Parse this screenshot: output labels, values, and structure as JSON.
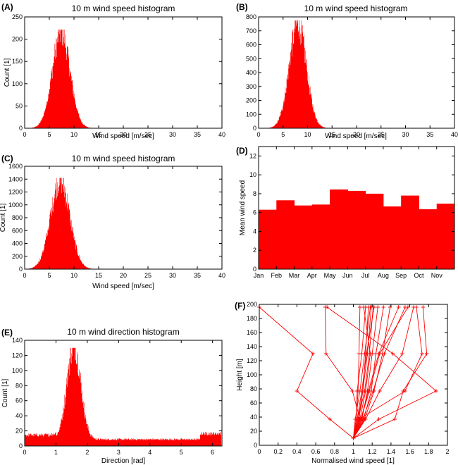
{
  "chart_data": [
    {
      "id": "A",
      "type": "bar",
      "panel_label": "(A)",
      "title": "10 m wind speed histogram",
      "xlabel": "Wind speed [m/sec]",
      "ylabel": "Count [1]",
      "xlim": [
        0,
        40
      ],
      "ylim": [
        0,
        250
      ],
      "xticks": [
        "0",
        "5",
        "10",
        "15",
        "20",
        "25",
        "30",
        "35",
        "40"
      ],
      "yticks": [
        "0",
        "50",
        "100",
        "150",
        "200",
        "250"
      ],
      "distribution": {
        "mean": 7.4,
        "sd": 1.8,
        "peak": 222,
        "xmin": 0.3,
        "xmax": 14.5
      }
    },
    {
      "id": "B",
      "type": "bar",
      "panel_label": "(B)",
      "title": "10 m wind speed histogram",
      "xlabel": "Wind speed [m/sec]",
      "ylabel": "",
      "xlim": [
        0,
        40
      ],
      "ylim": [
        0,
        800
      ],
      "xticks": [
        "0",
        "5",
        "10",
        "15",
        "20",
        "25",
        "30",
        "35",
        "40"
      ],
      "yticks": [
        "0",
        "100",
        "200",
        "300",
        "400",
        "500",
        "600",
        "700",
        "800"
      ],
      "distribution": {
        "mean": 8.0,
        "sd": 1.75,
        "peak": 775,
        "xmin": 0.3,
        "xmax": 15.5
      }
    },
    {
      "id": "C",
      "type": "bar",
      "panel_label": "(C)",
      "title": "10 m wind speed histogram",
      "xlabel": "Wind speed [m/sec]",
      "ylabel": "Count [1]",
      "xlim": [
        0,
        40
      ],
      "ylim": [
        0,
        1600
      ],
      "xticks": [
        "0",
        "5",
        "10",
        "15",
        "20",
        "25",
        "30",
        "35",
        "40"
      ],
      "yticks": [
        "0",
        "200",
        "400",
        "600",
        "800",
        "1000",
        "1200",
        "1400",
        "1600"
      ],
      "distribution": {
        "mean": 7.2,
        "sd": 1.95,
        "peak": 1420,
        "xmin": 0.3,
        "xmax": 16.0
      }
    },
    {
      "id": "D",
      "type": "bar",
      "panel_label": "(D)",
      "title": "",
      "xlabel": "",
      "ylabel": "Mean wind speed",
      "xlim": [
        0,
        11
      ],
      "ylim": [
        0,
        13
      ],
      "categories": [
        "Jan",
        "Feb",
        "Mar",
        "Apr",
        "May",
        "Jun",
        "Jul",
        "Aug",
        "Sep",
        "Oct",
        "Nov"
      ],
      "values": [
        6.3,
        7.3,
        6.75,
        6.85,
        8.45,
        8.3,
        8.0,
        6.65,
        7.8,
        6.35,
        6.95
      ],
      "yticks": [
        "0",
        "2",
        "4",
        "6",
        "8",
        "10",
        "12"
      ]
    },
    {
      "id": "E",
      "type": "bar",
      "panel_label": "(E)",
      "title": "10 m wind direction histogram",
      "xlabel": "Direction [rad]",
      "ylabel": "Count [1]",
      "xlim": [
        0,
        6.3
      ],
      "ylim": [
        0,
        140
      ],
      "xticks": [
        "0",
        "1",
        "2",
        "3",
        "4",
        "5",
        "6"
      ],
      "yticks": [
        "0",
        "20",
        "40",
        "60",
        "80",
        "100",
        "120",
        "140"
      ],
      "distribution": {
        "mean": 1.57,
        "sd": 0.22,
        "peak": 130,
        "xmin": 0,
        "xmax": 6.28
      }
    },
    {
      "id": "F",
      "type": "line",
      "panel_label": "(F)",
      "title": "",
      "xlabel": "Normalised wind speed [1]",
      "ylabel": "Height [m]",
      "xlim": [
        0,
        2
      ],
      "ylim": [
        0,
        200
      ],
      "xticks": [
        "0",
        "0.2",
        "0.4",
        "0.6",
        "0.8",
        "1",
        "1.2",
        "1.4",
        "1.6",
        "1.8",
        "2"
      ],
      "yticks": [
        "0",
        "20",
        "40",
        "60",
        "80",
        "100",
        "120",
        "140",
        "160",
        "180",
        "200"
      ],
      "heights": [
        10,
        37,
        77,
        130,
        196
      ],
      "series": [
        {
          "values": [
            1.0,
            0.75,
            0.4,
            0.57,
            0.0
          ]
        },
        {
          "values": [
            1.0,
            1.27,
            1.88,
            1.42,
            0.72
          ]
        },
        {
          "values": [
            1.0,
            1.07,
            0.99,
            0.71,
            0.7
          ]
        },
        {
          "values": [
            1.0,
            1.06,
            1.55,
            1.73,
            1.67
          ]
        },
        {
          "values": [
            1.0,
            1.44,
            1.53,
            1.78,
            1.74
          ]
        },
        {
          "values": [
            1.0,
            1.13,
            1.28,
            1.52,
            1.64
          ]
        },
        {
          "values": [
            1.0,
            1.08,
            1.16,
            1.27,
            1.48
          ]
        },
        {
          "values": [
            1.0,
            1.1,
            1.21,
            1.33,
            1.55
          ]
        },
        {
          "values": [
            1.0,
            1.05,
            1.1,
            1.15,
            1.19
          ]
        },
        {
          "values": [
            1.0,
            1.03,
            1.05,
            1.06,
            1.07
          ]
        },
        {
          "values": [
            1.0,
            1.06,
            1.1,
            1.13,
            1.16
          ]
        },
        {
          "values": [
            1.0,
            1.09,
            1.15,
            1.2,
            1.26
          ]
        },
        {
          "values": [
            1.0,
            1.02,
            1.07,
            1.12,
            1.18
          ]
        },
        {
          "values": [
            1.0,
            1.11,
            1.19,
            1.24,
            1.32
          ]
        },
        {
          "values": [
            1.0,
            1.04,
            1.09,
            1.14,
            1.22
          ]
        },
        {
          "values": [
            1.0,
            1.07,
            1.13,
            1.18,
            1.11
          ]
        },
        {
          "values": [
            1.0,
            1.12,
            1.22,
            1.31,
            1.39
          ]
        },
        {
          "values": [
            1.0,
            1.03,
            1.04,
            1.09,
            1.13
          ]
        },
        {
          "values": [
            1.0,
            1.08,
            1.17,
            1.28,
            1.58
          ]
        },
        {
          "values": [
            1.0,
            1.05,
            1.12,
            1.17,
            1.21
          ]
        }
      ]
    }
  ]
}
